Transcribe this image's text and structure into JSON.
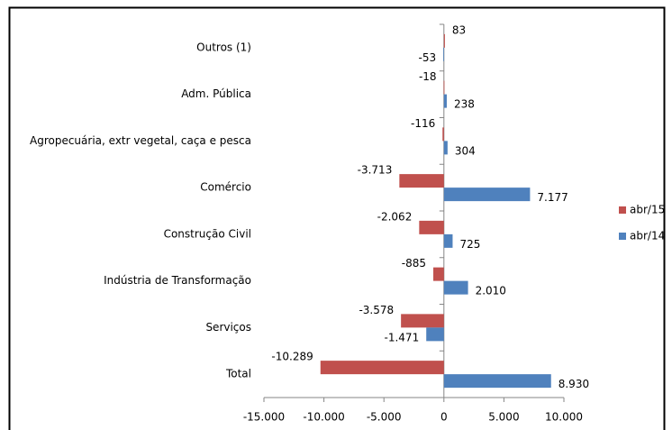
{
  "chart_data": {
    "type": "barh",
    "categories": [
      "Outros (1)",
      "Adm. Pública",
      "Agropecuária, extr vegetal, caça e pesca",
      "Comércio",
      "Construção Civil",
      "Indústria de Transformação",
      "Serviços",
      "Total"
    ],
    "series": [
      {
        "name": "abr/15",
        "color": "#c0504d",
        "values": [
          83,
          -18,
          -116,
          -3713,
          -2062,
          -885,
          -3578,
          -10289
        ],
        "value_labels": [
          "83",
          "-18",
          "-116",
          "-3.713",
          "-2.062",
          "-885",
          "-3.578",
          "-10.289"
        ]
      },
      {
        "name": "abr/14",
        "color": "#4f81bd",
        "values": [
          -53,
          238,
          304,
          7177,
          725,
          2010,
          -1471,
          8930
        ],
        "value_labels": [
          "-53",
          "238",
          "304",
          "7.177",
          "725",
          "2.010",
          "-1.471",
          "8.930"
        ]
      }
    ],
    "xlim": [
      -15000,
      10000
    ],
    "xticks": [
      {
        "value": -15000,
        "label": "-15.000"
      },
      {
        "value": -10000,
        "label": "-10.000"
      },
      {
        "value": -5000,
        "label": "-5.000"
      },
      0,
      {
        "value": 5000,
        "label": "5.000"
      },
      {
        "value": 10000,
        "label": "10.000"
      }
    ],
    "legend": "right"
  }
}
